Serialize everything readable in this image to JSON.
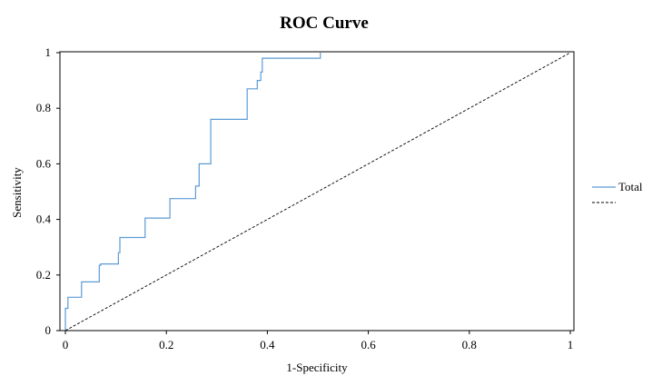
{
  "chart_data": {
    "type": "line",
    "title": "ROC Curve",
    "xlabel": "1-Specificity",
    "ylabel": "Sensitivity",
    "xlim": [
      0,
      1
    ],
    "ylim": [
      0,
      1
    ],
    "x_ticks": [
      {
        "value": 0,
        "label": "0"
      },
      {
        "value": 0.2,
        "label": "0.2"
      },
      {
        "value": 0.4,
        "label": "0.4"
      },
      {
        "value": 0.6,
        "label": "0.6"
      },
      {
        "value": 0.8,
        "label": "0.8"
      },
      {
        "value": 1,
        "label": "1"
      }
    ],
    "y_ticks": [
      {
        "value": 0,
        "label": "0"
      },
      {
        "value": 0.2,
        "label": "0.2"
      },
      {
        "value": 0.4,
        "label": "0.4"
      },
      {
        "value": 0.6,
        "label": "0.6"
      },
      {
        "value": 0.8,
        "label": "0.8"
      },
      {
        "value": 1,
        "label": "1"
      }
    ],
    "grid": false,
    "legend_position": "right",
    "series": [
      {
        "name": "Total",
        "color": "#5b9bd5",
        "line_style": "solid",
        "step": true,
        "points": [
          [
            0,
            0
          ],
          [
            0,
            0.08
          ],
          [
            0.005,
            0.08
          ],
          [
            0.005,
            0.12
          ],
          [
            0.032,
            0.12
          ],
          [
            0.032,
            0.175
          ],
          [
            0.067,
            0.175
          ],
          [
            0.067,
            0.235
          ],
          [
            0.07,
            0.235
          ],
          [
            0.07,
            0.24
          ],
          [
            0.105,
            0.24
          ],
          [
            0.105,
            0.28
          ],
          [
            0.108,
            0.28
          ],
          [
            0.108,
            0.335
          ],
          [
            0.158,
            0.335
          ],
          [
            0.158,
            0.405
          ],
          [
            0.207,
            0.405
          ],
          [
            0.207,
            0.475
          ],
          [
            0.258,
            0.475
          ],
          [
            0.258,
            0.52
          ],
          [
            0.265,
            0.52
          ],
          [
            0.265,
            0.6
          ],
          [
            0.288,
            0.6
          ],
          [
            0.288,
            0.76
          ],
          [
            0.36,
            0.76
          ],
          [
            0.36,
            0.87
          ],
          [
            0.38,
            0.87
          ],
          [
            0.38,
            0.9
          ],
          [
            0.387,
            0.9
          ],
          [
            0.387,
            0.93
          ],
          [
            0.39,
            0.93
          ],
          [
            0.39,
            0.98
          ],
          [
            0.505,
            0.98
          ],
          [
            0.505,
            1
          ]
        ]
      },
      {
        "name": "",
        "color": "#000000",
        "line_style": "dashed",
        "step": false,
        "points": [
          [
            0,
            0
          ],
          [
            1,
            1
          ]
        ]
      }
    ]
  }
}
